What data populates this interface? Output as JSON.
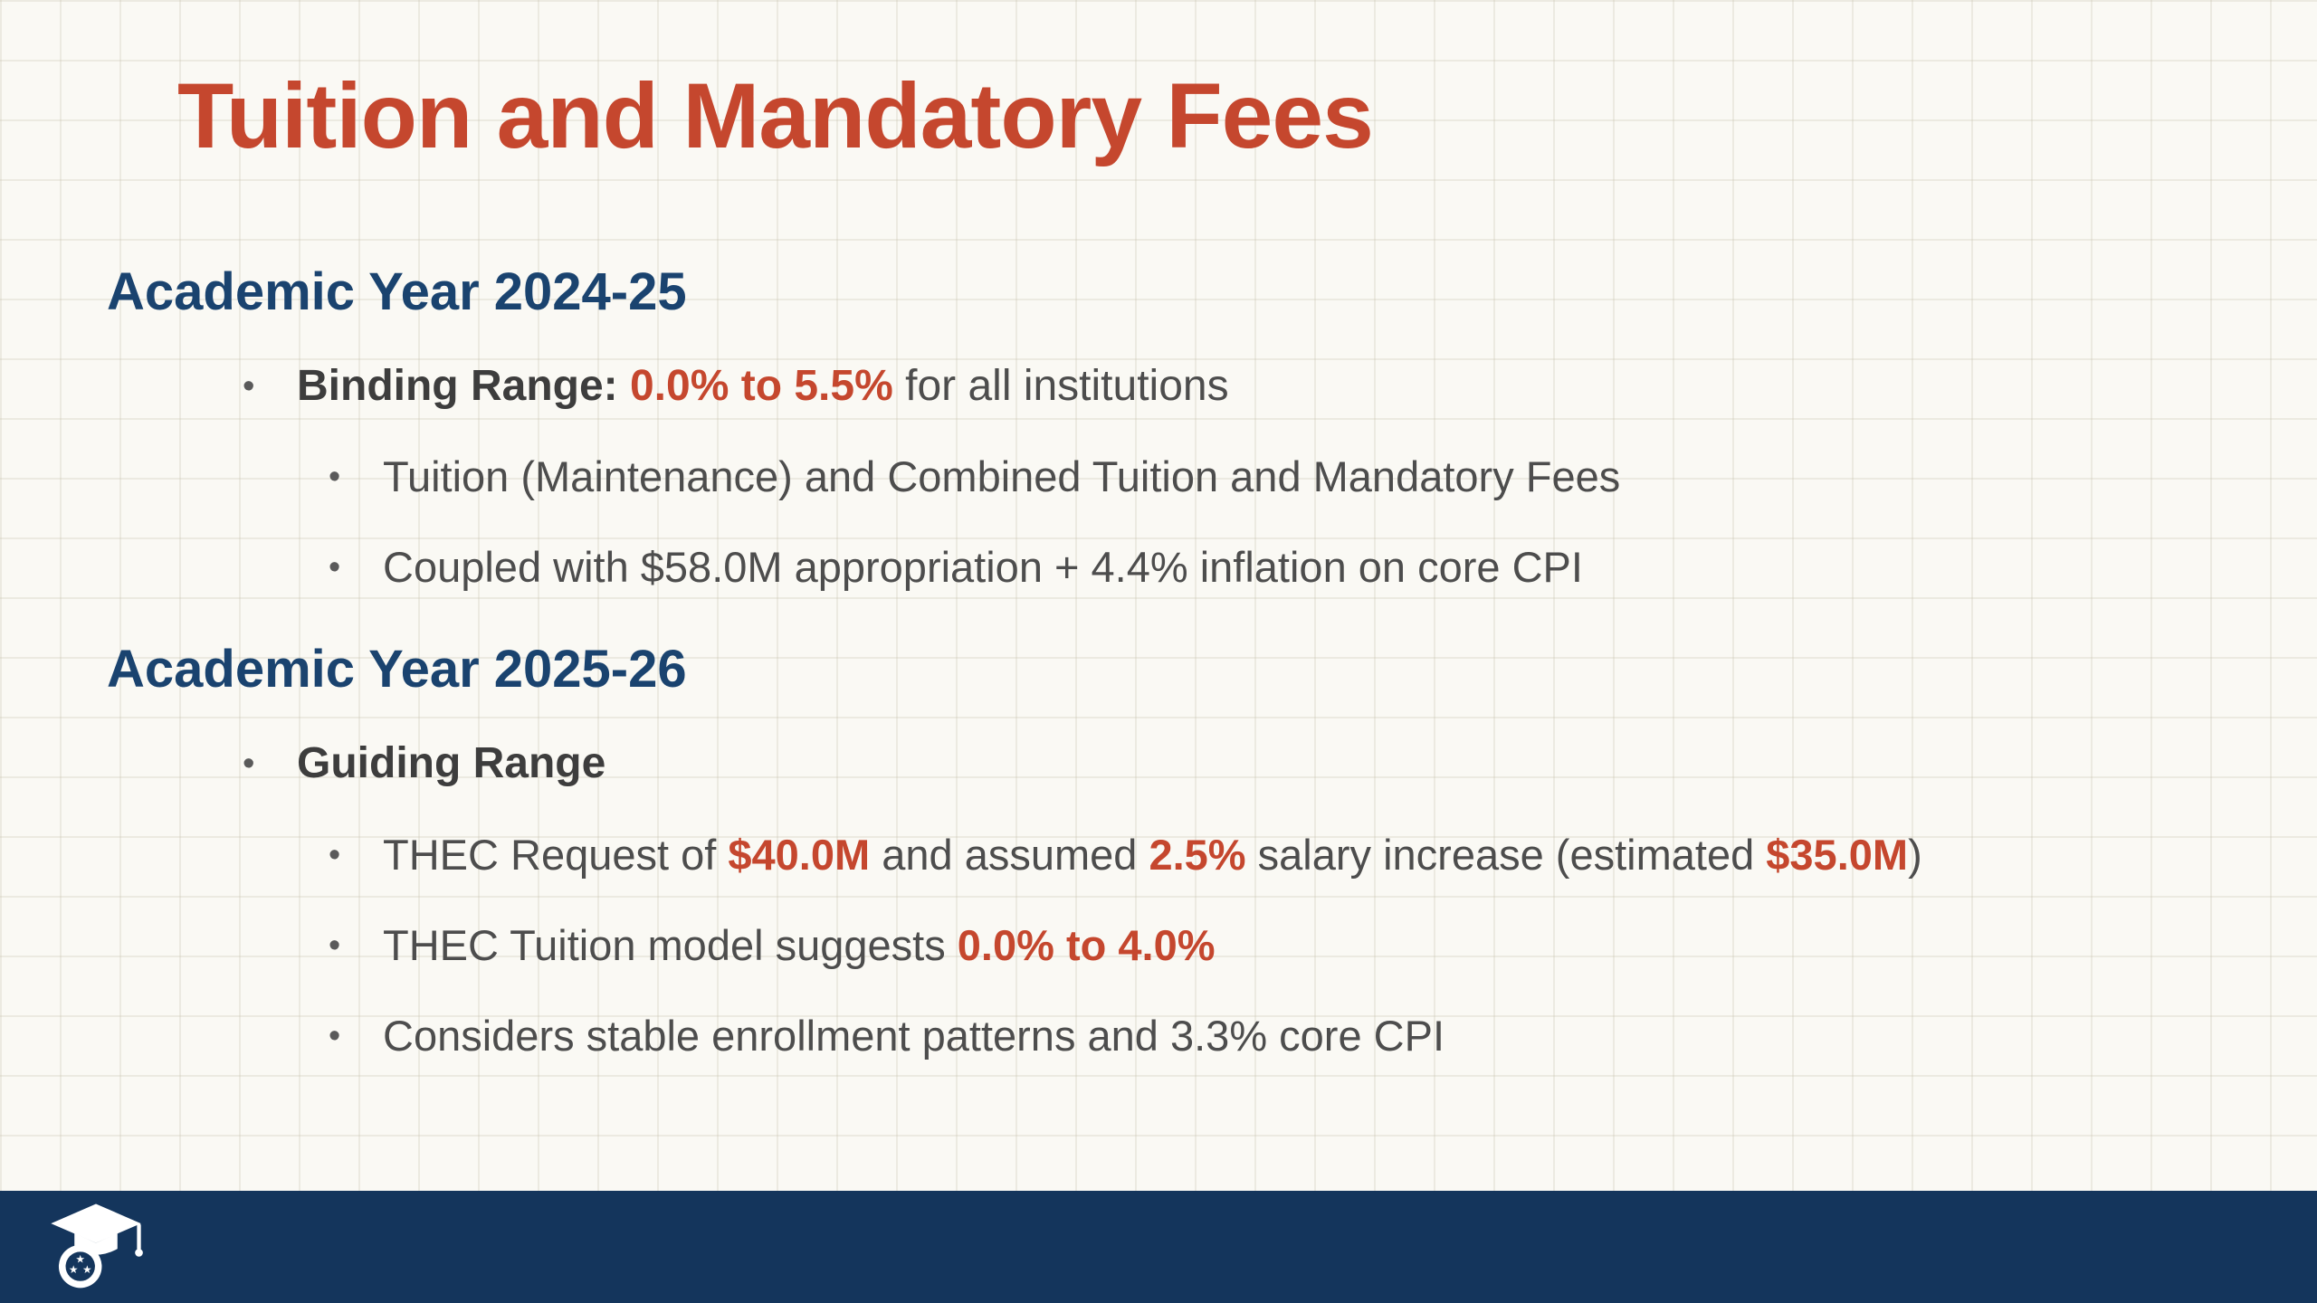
{
  "slide": {
    "title": "Tuition and Mandatory Fees",
    "sections": [
      {
        "heading": "Academic Year 2024-25",
        "bullets": [
          {
            "level": 1,
            "segments": [
              {
                "text": "Binding Range: ",
                "style": "bold"
              },
              {
                "text": "0.0% to 5.5%",
                "style": "bold-red"
              },
              {
                "text": " for all institutions",
                "style": "normal"
              }
            ]
          },
          {
            "level": 2,
            "segments": [
              {
                "text": "Tuition (Maintenance) and Combined Tuition and Mandatory Fees",
                "style": "normal"
              }
            ]
          },
          {
            "level": 2,
            "segments": [
              {
                "text": "Coupled with $58.0M appropriation + 4.4% inflation on core CPI",
                "style": "normal"
              }
            ]
          }
        ]
      },
      {
        "heading": "Academic Year 2025-26",
        "bullets": [
          {
            "level": 1,
            "segments": [
              {
                "text": "Guiding Range",
                "style": "bold"
              }
            ]
          },
          {
            "level": 2,
            "segments": [
              {
                "text": "THEC Request of ",
                "style": "normal"
              },
              {
                "text": "$40.0M",
                "style": "bold-red"
              },
              {
                "text": " and assumed ",
                "style": "normal"
              },
              {
                "text": "2.5%",
                "style": "bold-red"
              },
              {
                "text": " salary increase (estimated ",
                "style": "normal"
              },
              {
                "text": "$35.0M",
                "style": "bold-red"
              },
              {
                "text": ")",
                "style": "normal"
              }
            ]
          },
          {
            "level": 2,
            "segments": [
              {
                "text": "THEC Tuition model suggests ",
                "style": "normal"
              },
              {
                "text": "0.0% to 4.0%",
                "style": "bold-red"
              }
            ]
          },
          {
            "level": 2,
            "segments": [
              {
                "text": "Considers stable enrollment patterns and 3.3% core CPI",
                "style": "normal"
              }
            ]
          }
        ]
      }
    ],
    "footer": {
      "logo_name": "graduation-cap-tristar-logo"
    },
    "colors": {
      "title_red": "#c5472e",
      "heading_navy": "#1a436f",
      "body_gray": "#4d4d4d",
      "accent_red": "#c5472e",
      "footer_bg": "#14355c",
      "background": "#faf9f4"
    },
    "bullet_marker": "•"
  }
}
